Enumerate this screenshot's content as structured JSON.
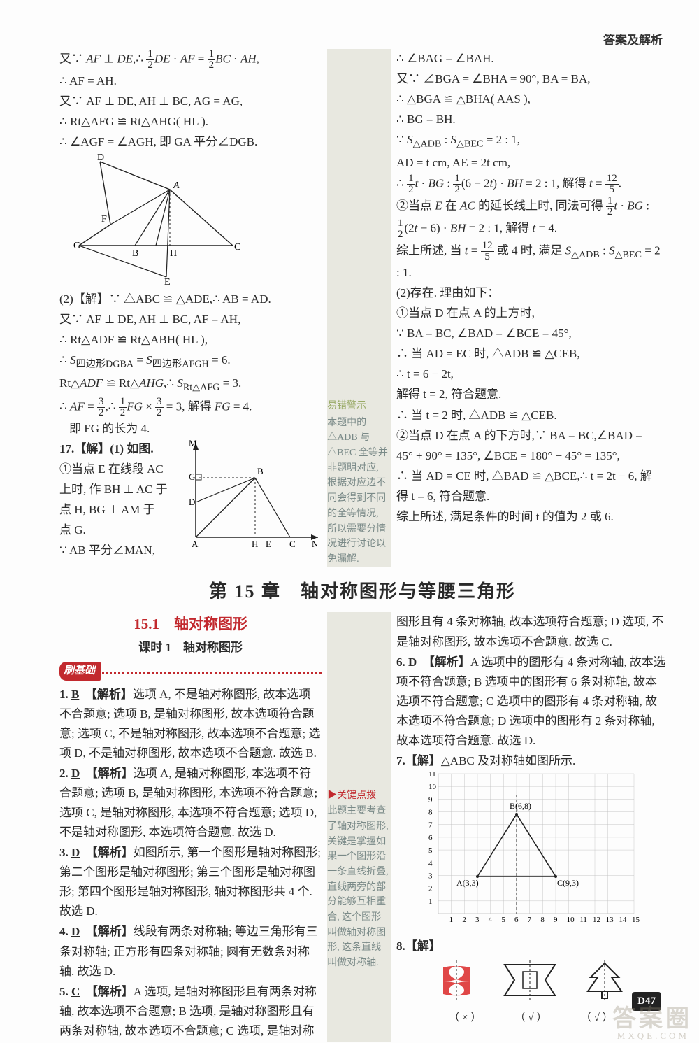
{
  "header": "答案及解析",
  "page_number": "D47",
  "watermark_big": "答案圈",
  "watermark_small": "MXQE.COM",
  "chapter_title": "第 15 章　轴对称图形与等腰三角形",
  "section_title": "15.1　轴对称图形",
  "lesson_title": "课时 1　轴对称图形",
  "basics_label": "刷基础",
  "top_left": {
    "lines": [
      "又∵ AF ⊥ DE,∴ (1/2)DE · AF = (1/2)BC · AH,",
      "∴ AF = AH.",
      "又∵ AF ⊥ DE, AH ⊥ BC, AG = AG,",
      "∴ Rt△AFG ≌ Rt△AHG( HL ).",
      "∴ ∠AGF = ∠AGH, 即 GA 平分∠DGB."
    ],
    "lines2": [
      "(2)【解】∵ △ABC ≌ △ADE,∴ AB = AD.",
      "又∵ AF ⊥ DE, AH ⊥ BC, AF = AH,",
      "∴ Rt△ADF ≌ Rt△ABH( HL ),",
      "∴ S四边形DGBA = S四边形AFGH = 6.",
      "Rt△ADF ≌ Rt△AHG,∴ SRt△AFG = 3.",
      "∴ AF = 3/2,∴ (1/2)FG × (3/2) = 3, 解得 FG = 4.",
      "即 FG 的长为 4."
    ],
    "q17": [
      "17.【解】(1) 如图.",
      "①当点 E 在线段 AC",
      "上时, 作 BH ⊥ AC 于",
      "点 H, BG ⊥ AM 于",
      "点 G.",
      "∵ AB 平分∠MAN,"
    ]
  },
  "top_right": {
    "lines": [
      "∴ ∠BAG = ∠BAH.",
      "又∵ ∠BGA = ∠BHA = 90°, BA = BA,",
      "∴ △BGA ≌ △BHA( AAS ),",
      "∴ BG = BH.",
      "∵ S△ADB : S△BEC = 2 : 1,",
      "AD = t cm, AE = 2t cm,",
      "∴ (1/2)t · BG : (1/2)(6 − 2t) · BH = 2 : 1, 解得 t = 12/5.",
      "②当点 E 在 AC 的延长线上时, 同法可得 (1/2)t · BG :",
      "(1/2)(2t − 6) · BH = 2 : 1, 解得 t = 4.",
      "综上所述, 当 t = 12/5 或 4 时, 满足 S△ADB : S△BEC = 2 : 1.",
      "(2)存在. 理由如下：",
      "①当点 D 在点 A 的上方时,",
      "∵ BA = BC, ∠BAD = ∠BCE = 45°,",
      "∴ 当 AD = EC 时, △ADB ≌ △CEB,",
      "∴ t = 6 − 2t,",
      "解得 t = 2, 符合题意.",
      "∴ 当 t = 2 时, △ADB ≌ △CEB.",
      "②当点 D 在点 A 的下方时,∵ BA = BC,∠BAD =",
      "45° + 90° = 135°, ∠BCE = 180° − 45° = 135°,",
      "∴ 当 AD = CE 时, △BAD ≌ △BCE,∴ t = 2t − 6, 解",
      "得 t = 6, 符合题意.",
      "综上所述, 满足条件的时间 t 的值为 2 或 6."
    ]
  },
  "note_top": {
    "title": "易错警示",
    "body": "本题中的△ADB 与△BEC 全等并非题明对应, 根据对应边不同会得到不同的全等情况, 所以需要分情况进行讨论以免漏解."
  },
  "note_bottom": {
    "title": "关键点拨",
    "body": "此题主要考查了轴对称图形, 关键是掌握如果一个图形沿一条直线折叠, 直线两旁的部分能够互相重合, 这个图形叫做轴对称图形, 这条直线叫做对称轴."
  },
  "q1": {
    "num": "1.",
    "ans": "B",
    "label": "【解析】",
    "text": "选项 A, 不是轴对称图形, 故本选项不合题意; 选项 B, 是轴对称图形, 故本选项符合题意; 选项 C, 不是轴对称图形, 故本选项不合题意; 选项 D, 不是轴对称图形, 故本选项不合题意. 故选 B."
  },
  "q2": {
    "num": "2.",
    "ans": "D",
    "label": "【解析】",
    "text": "选项 A, 是轴对称图形, 本选项不符合题意; 选项 B, 是轴对称图形, 本选项不符合题意; 选项 C, 是轴对称图形, 本选项不符合题意; 选项 D, 不是轴对称图形, 本选项符合题意. 故选 D."
  },
  "q3": {
    "num": "3.",
    "ans": "D",
    "label": "【解析】",
    "text": "如图所示, 第一个图形是轴对称图形; 第二个图形是轴对称图形; 第三个图形是轴对称图形; 第四个图形是轴对称图形, 轴对称图形共 4 个. 故选 D."
  },
  "q4": {
    "num": "4.",
    "ans": "D",
    "label": "【解析】",
    "text": "线段有两条对称轴; 等边三角形有三条对称轴; 正方形有四条对称轴; 圆有无数条对称轴. 故选 D."
  },
  "q5": {
    "num": "5.",
    "ans": "C",
    "label": "【解析】",
    "text": "A 选项, 是轴对称图形且有两条对称轴, 故本选项不合题意; B 选项, 是轴对称图形且有两条对称轴, 故本选项不合题意; C 选项, 是轴对称"
  },
  "q5b": "图形且有 4 条对称轴, 故本选项符合题意; D 选项, 不是轴对称图形, 故本选项不合题意. 故选 C.",
  "q6": {
    "num": "6.",
    "ans": "D",
    "label": "【解析】",
    "text": "A 选项中的图形有 4 条对称轴, 故本选项不符合题意; B 选项中的图形有 6 条对称轴, 故本选项不符合题意; C 选项中的图形有 4 条对称轴, 故本选项不符合题意; D 选项中的图形有 2 条对称轴, 故本选项符合题意. 故选 D."
  },
  "q7": {
    "num": "7.",
    "label": "【解】",
    "text": "△ABC 及对称轴如图所示."
  },
  "q8": {
    "num": "8.",
    "label": "【解】",
    "x": "（ × ）",
    "y": "（ √ ）",
    "z": "（ √ ）"
  },
  "chart7": {
    "type": "scatter+triangle",
    "xlim": [
      0,
      15
    ],
    "ylim": [
      0,
      11
    ],
    "points": {
      "A": [
        3,
        3
      ],
      "B": [
        6,
        8
      ],
      "C": [
        9,
        3
      ]
    },
    "labels": {
      "A": "A(3,3)",
      "B": "B(6,8)",
      "C": "C(9,3)"
    },
    "axis_ticks_x": [
      1,
      2,
      3,
      4,
      5,
      6,
      7,
      8,
      9,
      10,
      11,
      12,
      13,
      14,
      15
    ],
    "axis_ticks_y": [
      1,
      2,
      3,
      4,
      5,
      6,
      7,
      8,
      9,
      10,
      11
    ],
    "grid_color": "#bbb",
    "line_color": "#222",
    "tick_fontsize": 11
  }
}
